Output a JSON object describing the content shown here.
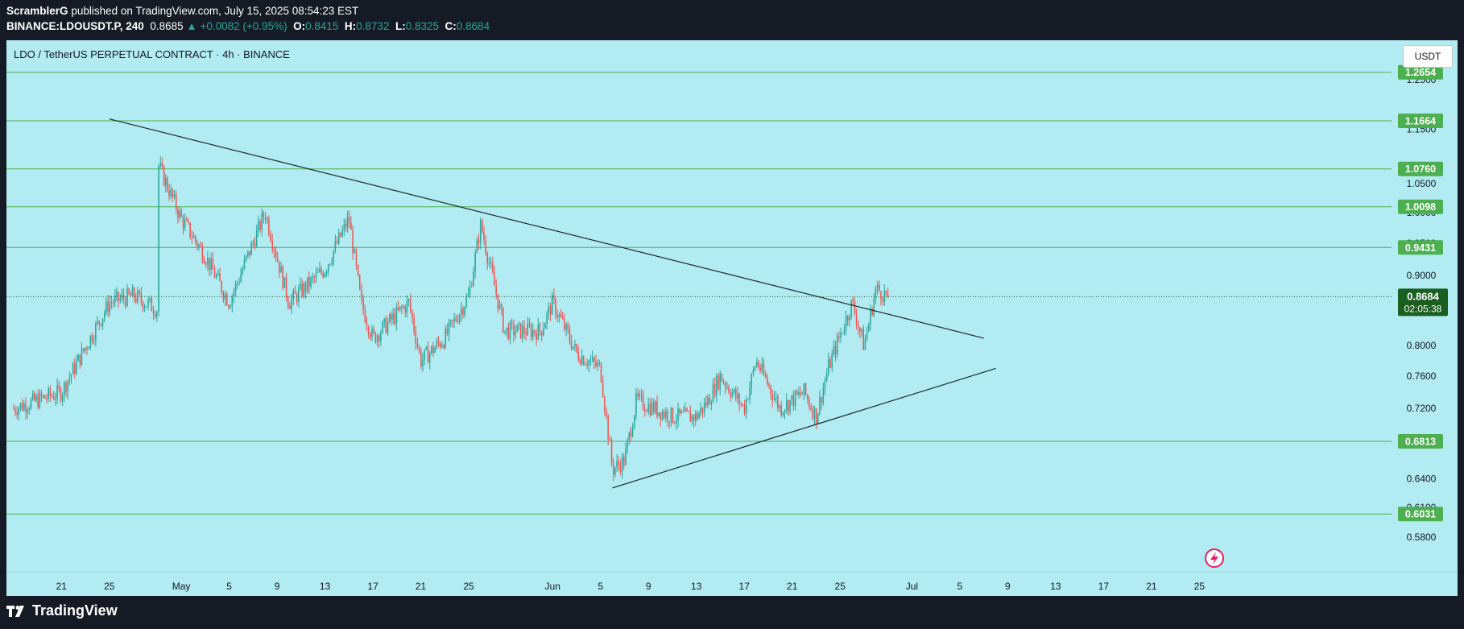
{
  "header": {
    "author": "ScramblerG",
    "published_text": "published on TradingView.com, July 15, 2025 08:54:23 EST",
    "symbol": "BINANCE:LDOUSDT.P, 240",
    "last": "0.8685",
    "change": "▲ +0.0082 (+0.95%)",
    "o_label": "O:",
    "o_value": "0.8415",
    "h_label": "H:",
    "h_value": "0.8732",
    "l_label": "L:",
    "l_value": "0.8325",
    "c_label": "C:",
    "c_value": "0.8684"
  },
  "chart_data": {
    "type": "candlestick",
    "title": "LDO / TetherUS PERPETUAL CONTRACT · 4h · BINANCE",
    "unit": "USDT",
    "scale": "log",
    "ylim": [
      0.565,
      1.33
    ],
    "price_ticks": [
      "1.2500",
      "1.1500",
      "1.0500",
      "1.0000",
      "0.9500",
      "0.9000",
      "0.8500",
      "0.8000",
      "0.7600",
      "0.7200",
      "0.6800",
      "0.6400",
      "0.6100",
      "0.5800"
    ],
    "time_ticks": [
      "21",
      "25",
      "May",
      "5",
      "9",
      "13",
      "17",
      "21",
      "25",
      "Jun",
      "5",
      "9",
      "13",
      "17",
      "21",
      "25",
      "Jul",
      "5",
      "9",
      "13",
      "17",
      "21",
      "25"
    ],
    "levels": [
      1.2654,
      1.1664,
      1.076,
      1.0098,
      0.9431,
      0.6813,
      0.6031
    ],
    "level_labels": [
      "1.2654",
      "1.1664",
      "1.0760",
      "1.0098",
      "0.9431",
      "0.6813",
      "0.6031"
    ],
    "current_price": "0.8684",
    "countdown": "02:05:38",
    "trendlines": [
      {
        "name": "descending resistance",
        "from": [
          "May 11",
          1.17
        ],
        "to": [
          "Jul 23",
          0.81
        ]
      },
      {
        "name": "ascending support",
        "from": [
          "Jun 22",
          0.63
        ],
        "to": [
          "Jul 24",
          0.77
        ]
      }
    ],
    "anchors": [
      [
        "Apr 17",
        0.72
      ],
      [
        "Apr 21",
        0.74
      ],
      [
        "Apr 25",
        0.86
      ],
      [
        "Apr 27",
        0.87
      ],
      [
        "Apr 29",
        0.85
      ],
      [
        "May 1",
        0.87
      ],
      [
        "May 3",
        0.82
      ],
      [
        "May 5",
        0.8
      ],
      [
        "May 7",
        0.76
      ],
      [
        "May 9",
        1.0
      ],
      [
        "May 11",
        1.15
      ],
      [
        "May 12",
        1.1
      ],
      [
        "May 14",
        1.14
      ],
      [
        "May 17",
        0.99
      ],
      [
        "May 19",
        0.93
      ],
      [
        "May 21",
        0.86
      ],
      [
        "May 24",
        1.0
      ],
      [
        "May 26",
        0.86
      ],
      [
        "May 29",
        0.91
      ],
      [
        "May 31",
        0.99
      ],
      [
        "Jun 1",
        0.86
      ],
      [
        "Jun 2",
        0.81
      ],
      [
        "Jun 5",
        0.86
      ],
      [
        "Jun 6",
        0.78
      ],
      [
        "Jun 8",
        0.81
      ],
      [
        "Jun 10",
        0.87
      ],
      [
        "Jun 11",
        0.98
      ],
      [
        "Jun 13",
        0.82
      ],
      [
        "Jun 16",
        0.82
      ],
      [
        "Jun 17",
        0.86
      ],
      [
        "Jun 19",
        0.79
      ],
      [
        "Jun 21",
        0.77
      ],
      [
        "Jun 22",
        0.65
      ],
      [
        "Jun 23",
        0.66
      ],
      [
        "Jun 24",
        0.73
      ],
      [
        "Jun 27",
        0.71
      ],
      [
        "Jun 29",
        0.71
      ],
      [
        "Jun 30",
        0.73
      ],
      [
        "Jul 1",
        0.76
      ],
      [
        "Jul 3",
        0.72
      ],
      [
        "Jul 4",
        0.78
      ],
      [
        "Jul 6",
        0.72
      ],
      [
        "Jul 8",
        0.74
      ],
      [
        "Jul 9",
        0.71
      ],
      [
        "Jul 10",
        0.77
      ],
      [
        "Jul 12",
        0.86
      ],
      [
        "Jul 13",
        0.8
      ],
      [
        "Jul 14",
        0.88
      ],
      [
        "Jul 15",
        0.8684
      ]
    ]
  },
  "footer": {
    "brand": "TradingView"
  },
  "colors": {
    "up": "#26a69a",
    "down": "#ef5350",
    "background": "#b2ebf2",
    "level": "#4caf50"
  }
}
